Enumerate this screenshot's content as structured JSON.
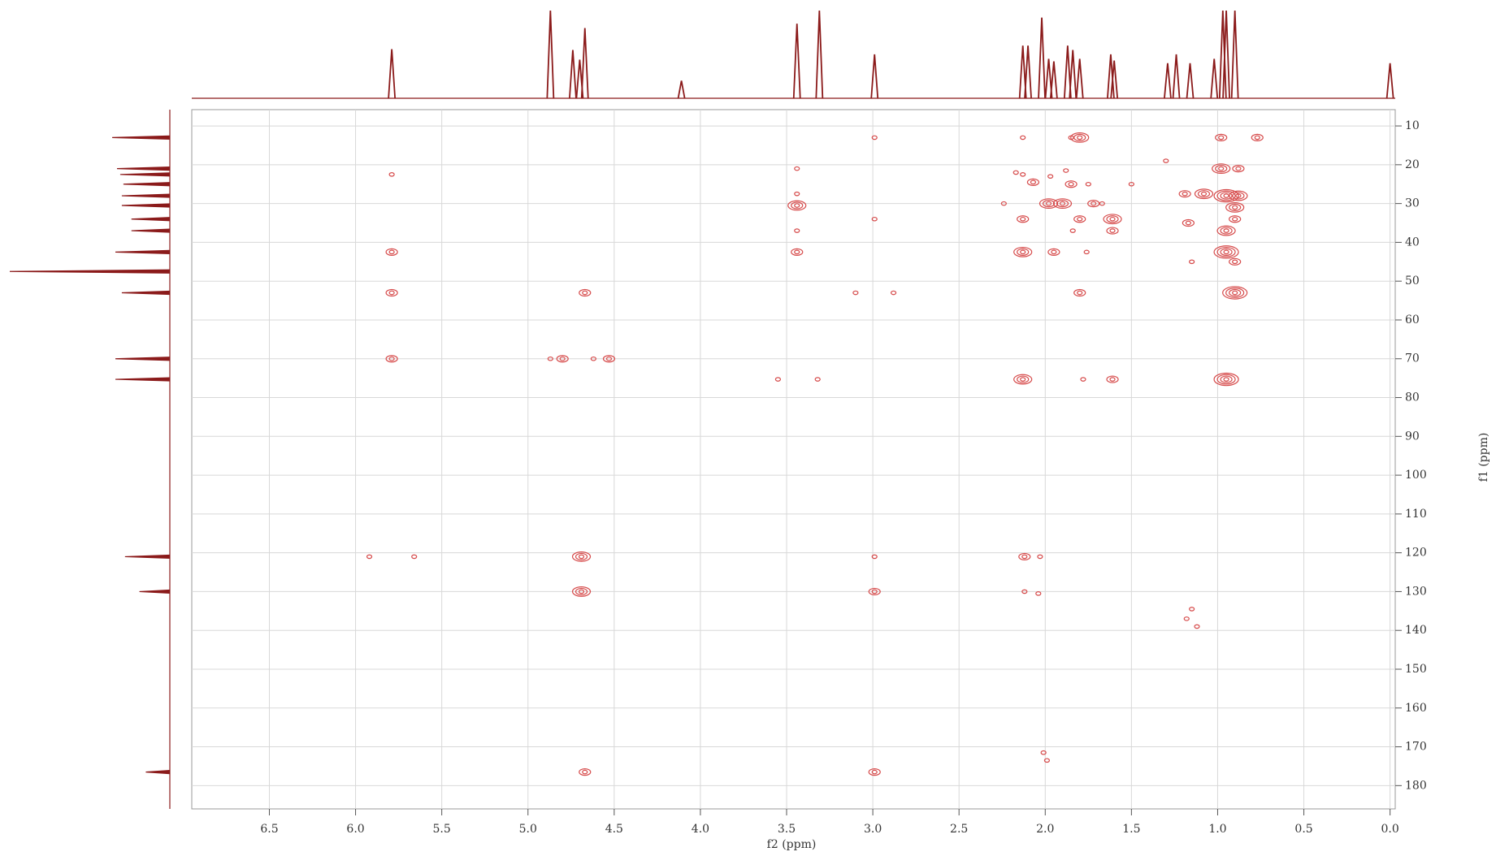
{
  "chart_data": {
    "type": "nmr2d",
    "xlabel": "f2 (ppm)",
    "ylabel": "f1 (ppm)",
    "xlim": [
      6.95,
      -0.03
    ],
    "ylim": [
      5.8,
      186
    ],
    "xticks": [
      6.5,
      {
        "value": 6,
        "label": "6.0"
      },
      5.5,
      {
        "value": 5,
        "label": "5.0"
      },
      4.5,
      {
        "value": 4,
        "label": "4.0"
      },
      3.5,
      {
        "value": 3,
        "label": "3.0"
      },
      2.5,
      {
        "value": 2,
        "label": "2.0"
      },
      1.5,
      {
        "value": 1,
        "label": "1.0"
      },
      0.5,
      {
        "value": 0,
        "label": "0.0"
      }
    ],
    "yticks": [
      10,
      20,
      30,
      40,
      50,
      60,
      70,
      80,
      90,
      100,
      110,
      120,
      130,
      140,
      150,
      160,
      170,
      180
    ],
    "grid": true,
    "color": "#d64a4a",
    "projection_color": "#8b1a1a",
    "cross_peaks": {
      "x": [
        5.79,
        5.79,
        5.79,
        5.79,
        5.92,
        5.66,
        4.67,
        4.8,
        4.87,
        4.62,
        4.53,
        4.69,
        4.69,
        4.67,
        3.55,
        3.32,
        3.44,
        3.44,
        3.44,
        3.44,
        3.44,
        2.99,
        2.99,
        3.1,
        2.88,
        2.99,
        2.99,
        2.99,
        2.13,
        2.13,
        2.17,
        2.07,
        2.24,
        2.13,
        2.13,
        2.13,
        2.12,
        2.03,
        2.12,
        2.04,
        2.01,
        1.99,
        1.98,
        1.9,
        1.97,
        1.88,
        1.85,
        1.8,
        1.85,
        1.95,
        1.8,
        1.84,
        1.76,
        1.8,
        1.78,
        1.72,
        1.67,
        1.75,
        1.61,
        1.61,
        1.61,
        1.5,
        1.19,
        1.08,
        1.17,
        1.15,
        1.15,
        1.18,
        1.12,
        0.98,
        0.77,
        0.98,
        0.88,
        0.95,
        0.88,
        0.9,
        0.9,
        0.95,
        0.95,
        0.9,
        0.9,
        0.95,
        1.3
      ],
      "y": [
        22.5,
        42.5,
        53,
        70,
        121,
        121,
        53,
        70,
        70,
        70,
        70,
        121,
        130,
        176.5,
        75.3,
        75.3,
        21,
        27.5,
        30.5,
        37,
        42.5,
        13,
        34,
        53,
        53,
        121,
        130,
        176.5,
        13,
        22.5,
        22,
        24.5,
        30,
        34,
        42.5,
        75.3,
        121,
        121,
        130,
        130.5,
        171.5,
        173.5,
        30,
        30,
        23,
        21.5,
        25,
        13,
        13,
        42.5,
        34,
        37,
        42.5,
        53,
        75.3,
        30,
        30,
        25,
        34,
        37,
        75.3,
        25,
        27.5,
        27.5,
        35,
        45,
        134.5,
        137,
        139,
        13,
        13,
        21,
        21,
        28,
        28,
        31,
        34,
        37,
        42.5,
        45,
        53,
        75.3,
        19
      ],
      "levels": [
        1,
        2,
        2,
        2,
        1,
        1,
        2,
        2,
        1,
        1,
        2,
        3,
        3,
        2,
        1,
        1,
        1,
        1,
        3,
        1,
        2,
        1,
        1,
        1,
        1,
        1,
        2,
        2,
        1,
        1,
        1,
        2,
        1,
        2,
        3,
        3,
        2,
        1,
        1,
        1,
        1,
        1,
        3,
        3,
        1,
        1,
        2,
        3,
        1,
        2,
        2,
        1,
        1,
        2,
        1,
        2,
        1,
        1,
        3,
        2,
        2,
        1,
        2,
        3,
        2,
        1,
        1,
        1,
        1,
        2,
        2,
        3,
        2,
        4,
        3,
        3,
        2,
        3,
        4,
        2,
        4,
        4,
        1
      ]
    },
    "f2_projection": {
      "x": [
        5.79,
        4.87,
        4.74,
        4.7,
        4.67,
        4.11,
        3.44,
        3.31,
        2.99,
        2.13,
        2.1,
        2.02,
        1.98,
        1.95,
        1.87,
        1.84,
        1.8,
        1.62,
        1.6,
        1.29,
        1.24,
        1.16,
        1.02,
        0.97,
        0.95,
        0.9,
        0.0
      ],
      "values": [
        56,
        100,
        55,
        44,
        80,
        20,
        85,
        100,
        50,
        60,
        60,
        92,
        45,
        42,
        60,
        55,
        45,
        50,
        43,
        40,
        50,
        40,
        45,
        100,
        100,
        100,
        40
      ]
    },
    "f1_projection": {
      "x": [
        13,
        21,
        22.5,
        25,
        28,
        30.5,
        34,
        37,
        42.5,
        47.5,
        53,
        70,
        75.3,
        121,
        130,
        176.5
      ],
      "values": [
        36,
        33,
        31,
        29,
        30,
        30,
        24,
        24,
        34,
        100,
        30,
        34,
        34,
        28,
        19,
        15
      ]
    }
  }
}
